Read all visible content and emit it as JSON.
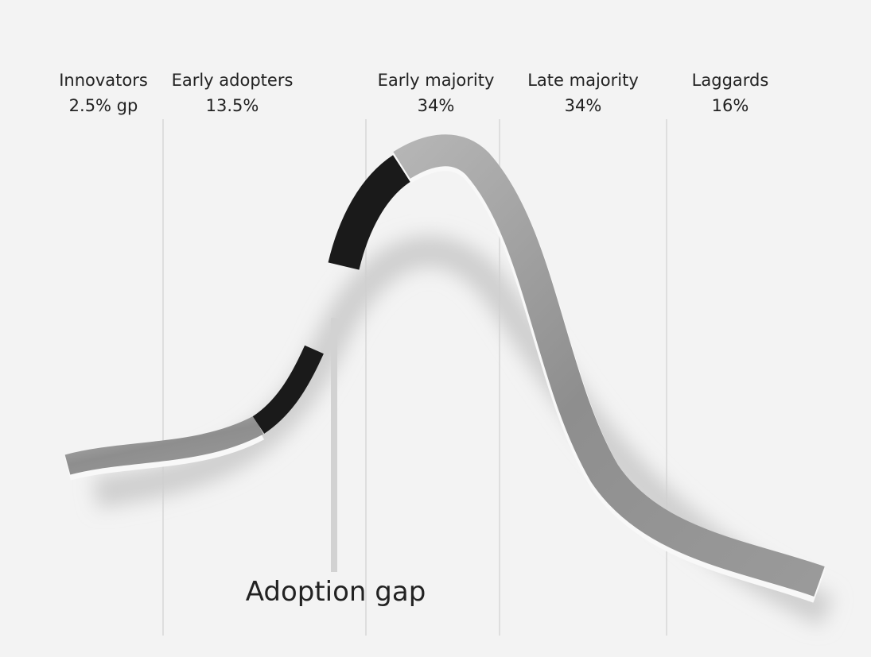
{
  "segments": [
    {
      "name": "Innovators",
      "share": "2.5% gp"
    },
    {
      "name": "Early adopters",
      "share": "13.5%"
    },
    {
      "name": "Early majority",
      "share": "34%"
    },
    {
      "name": "Late majority",
      "share": "34%"
    },
    {
      "name": "Laggards",
      "share": "16%"
    }
  ],
  "annotation": "Adoption gap"
}
